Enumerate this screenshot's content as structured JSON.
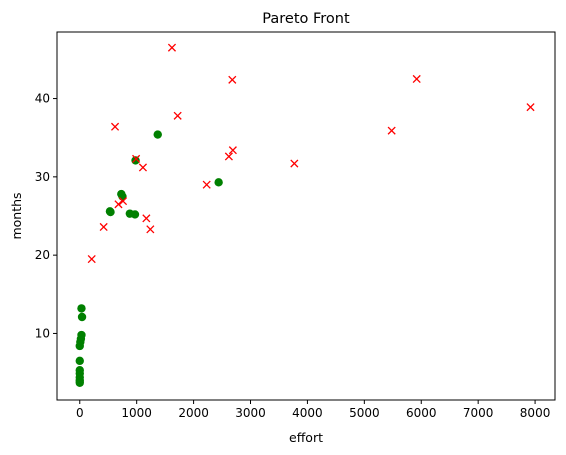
{
  "chart_data": {
    "type": "scatter",
    "title": "Pareto Front",
    "xlabel": "effort",
    "ylabel": "months",
    "xlim": [
      -400,
      8350
    ],
    "ylim": [
      1.5,
      48.5
    ],
    "xticks": [
      0,
      1000,
      2000,
      3000,
      4000,
      5000,
      6000,
      7000,
      8000
    ],
    "yticks": [
      10,
      20,
      30,
      40
    ],
    "grid": false,
    "legend": "none",
    "series": [
      {
        "marker": "circle",
        "color": "#008000",
        "points": [
          [
            0,
            3.7
          ],
          [
            0,
            4.0
          ],
          [
            0,
            4.4
          ],
          [
            0,
            4.9
          ],
          [
            0,
            5.3
          ],
          [
            0,
            6.5
          ],
          [
            0,
            8.4
          ],
          [
            10,
            8.9
          ],
          [
            20,
            9.3
          ],
          [
            30,
            9.8
          ],
          [
            30,
            13.2
          ],
          [
            40,
            12.1
          ],
          [
            530,
            25.6
          ],
          [
            540,
            25.5
          ],
          [
            730,
            27.8
          ],
          [
            750,
            27.5
          ],
          [
            880,
            25.3
          ],
          [
            970,
            25.2
          ],
          [
            980,
            32.1
          ],
          [
            1370,
            35.4
          ],
          [
            2440,
            29.3
          ]
        ]
      },
      {
        "marker": "x",
        "color": "#ff0000",
        "points": [
          [
            210,
            19.5
          ],
          [
            420,
            23.6
          ],
          [
            620,
            36.4
          ],
          [
            680,
            26.5
          ],
          [
            760,
            26.9
          ],
          [
            990,
            32.3
          ],
          [
            1110,
            31.2
          ],
          [
            1170,
            24.7
          ],
          [
            1240,
            23.3
          ],
          [
            1620,
            46.5
          ],
          [
            1720,
            37.8
          ],
          [
            2230,
            29.0
          ],
          [
            2620,
            32.6
          ],
          [
            2680,
            42.4
          ],
          [
            2690,
            33.4
          ],
          [
            3770,
            31.7
          ],
          [
            5480,
            35.9
          ],
          [
            5920,
            42.5
          ],
          [
            7920,
            38.9
          ]
        ]
      }
    ]
  }
}
